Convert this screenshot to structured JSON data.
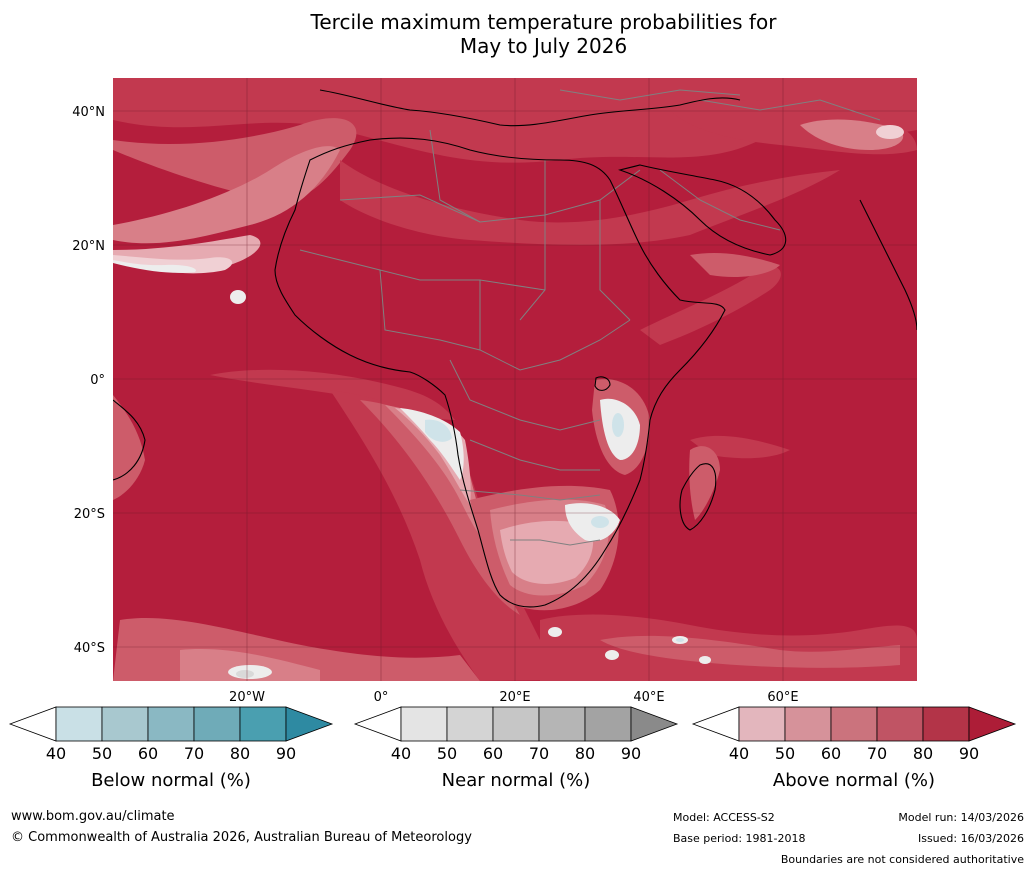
{
  "title": {
    "line1": "Tercile maximum temperature probabilities for",
    "line2": "May to July 2026"
  },
  "map": {
    "lat_labels": [
      "40°N",
      "20°N",
      "0°",
      "20°S",
      "40°S"
    ],
    "lon_labels": [
      "20°W",
      "0°",
      "20°E",
      "40°E",
      "60°E"
    ],
    "colors": {
      "above_90": "#b41e3c",
      "above_80": "#c2394f",
      "above_70": "#cd5c6a",
      "above_60": "#d87f88",
      "above_50": "#e6aab1",
      "above_40": "#f0d0d4",
      "near_50": "#d9d9d9",
      "near_40": "#ededed",
      "below_50": "#a9c9d3",
      "below_40": "#cfe3e9",
      "land_boundary": "#808080",
      "coastline": "#000000",
      "graticule": "#6b1a28"
    }
  },
  "colorbars": [
    {
      "title": "Below normal (%)",
      "ticks": [
        "40",
        "50",
        "60",
        "70",
        "80",
        "90"
      ],
      "colors": [
        "#ffffff",
        "#c9e0e6",
        "#a8c8cf",
        "#8ab8c3",
        "#6fabb8",
        "#4a9fb0",
        "#2e8aa2"
      ]
    },
    {
      "title": "Near normal (%)",
      "ticks": [
        "40",
        "50",
        "60",
        "70",
        "80",
        "90"
      ],
      "colors": [
        "#ffffff",
        "#e4e4e4",
        "#d4d4d4",
        "#c6c6c6",
        "#b5b5b5",
        "#a3a3a3",
        "#8a8a8a"
      ]
    },
    {
      "title": "Above normal (%)",
      "ticks": [
        "40",
        "50",
        "60",
        "70",
        "80",
        "90"
      ],
      "colors": [
        "#ffffff",
        "#e3b6bd",
        "#d6929a",
        "#cb737d",
        "#c05464",
        "#b33448",
        "#ad1d37"
      ]
    }
  ],
  "footer": {
    "website": "www.bom.gov.au/climate",
    "copyright": "© Commonwealth of Australia 2026, Australian Bureau of Meteorology",
    "model": "Model: ACCESS-S2",
    "base_period": "Base period: 1981-2018",
    "model_run": "Model run: 14/03/2026",
    "issued": "Issued: 16/03/2026",
    "disclaimer": "Boundaries are not considered authoritative"
  }
}
